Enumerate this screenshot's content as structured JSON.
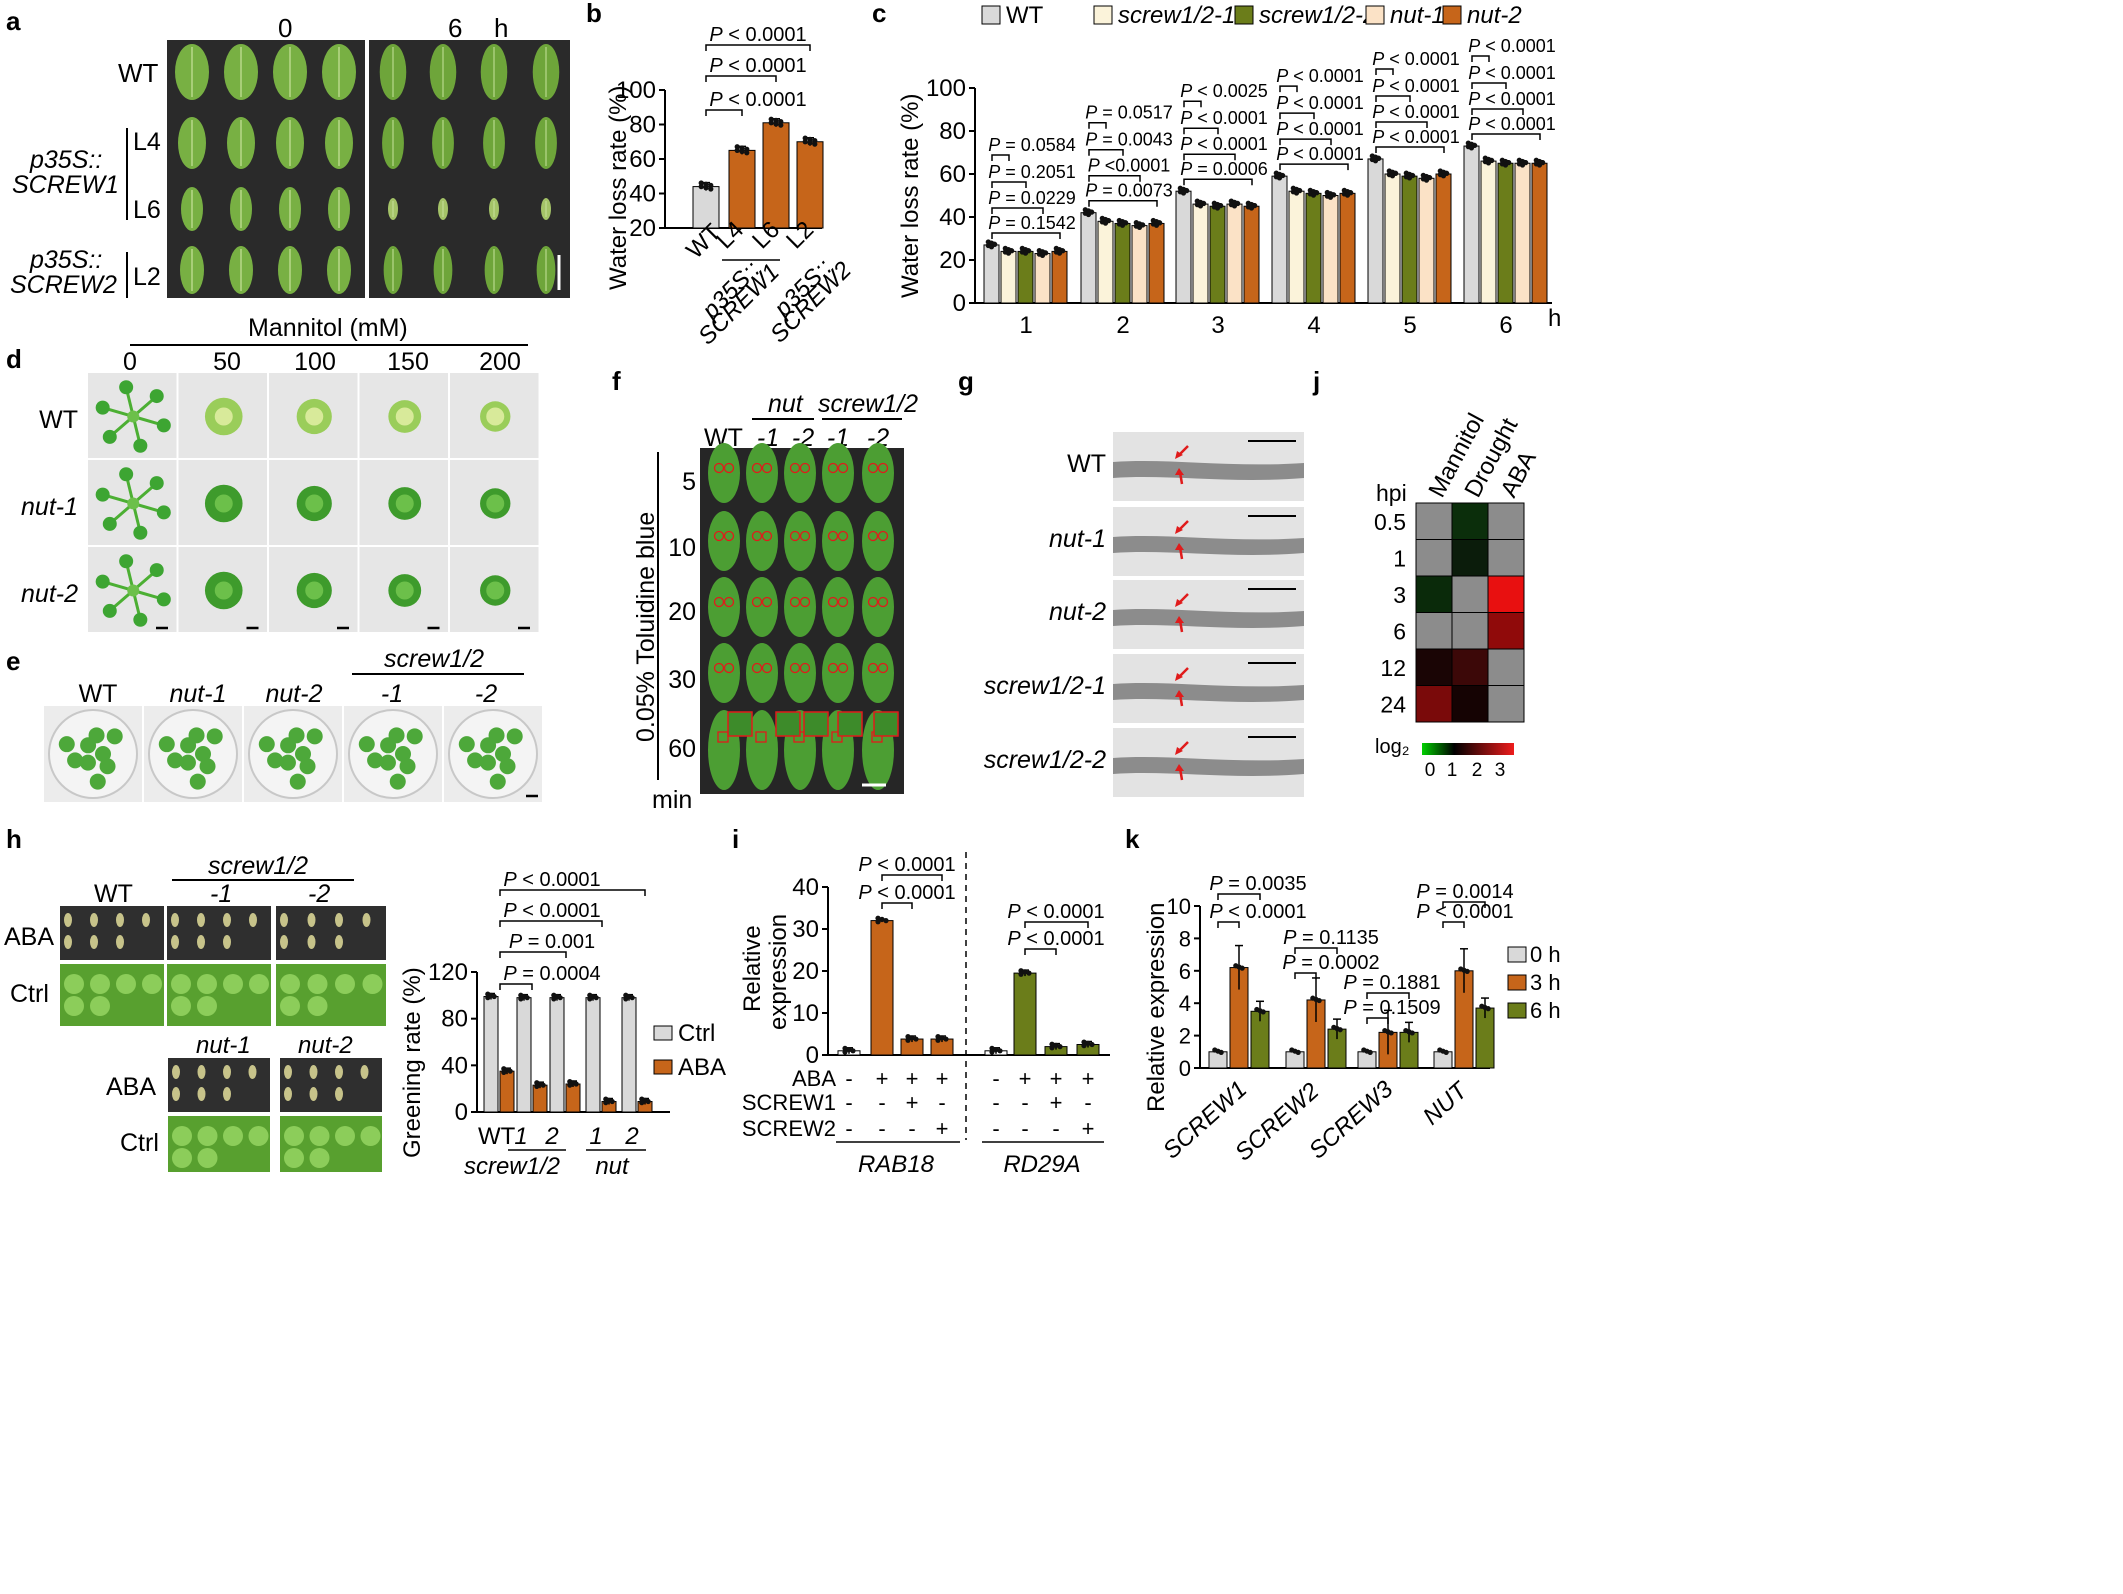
{
  "colors": {
    "wt_gray": "#d9d9d9",
    "orange": "#c6651a",
    "olive": "#6b7d1a",
    "cream": "#fbf3da",
    "peach": "#fbe2c6",
    "leaf": "#6aa63a",
    "heat_red": "#ee1c1c",
    "heat_green": "#00d000",
    "dark_bg": "#2a2a2a"
  },
  "panel_labels": {
    "a": "a",
    "b": "b",
    "c": "c",
    "d": "d",
    "e": "e",
    "f": "f",
    "g": "g",
    "h": "h",
    "i": "i",
    "j": "j",
    "k": "k"
  },
  "panel_a": {
    "time_0": "0",
    "time_6": "6",
    "time_unit": "h",
    "row_wt": "WT",
    "p35s": "p35S::",
    "screw1": "SCREW1",
    "screw2": "SCREW2",
    "l4": "L4",
    "l6": "L6",
    "l2": "L2"
  },
  "panel_b": {
    "ylabel": "Water loss rate (%)",
    "yticks": [
      "20",
      "40",
      "60",
      "80",
      "100"
    ],
    "pvals": [
      "P < 0.0001",
      "P < 0.0001",
      "P < 0.0001"
    ],
    "xlabels": [
      "WT",
      "L4",
      "L6",
      "L2"
    ],
    "group1": "p35S::",
    "group1b": "SCREW1",
    "group2": "p35S::",
    "group2b": "SCREW2"
  },
  "panel_c": {
    "legend": [
      "WT",
      "screw1/2-1",
      "screw1/2-2",
      "nut-1",
      "nut-2"
    ],
    "ylabel": "Water loss rate (%)",
    "yticks": [
      "0",
      "20",
      "40",
      "60",
      "80",
      "100"
    ],
    "xticks": [
      "1",
      "2",
      "3",
      "4",
      "5",
      "6"
    ],
    "xunit": "h",
    "pvals": [
      [
        "P = 0.1542",
        "P = 0.0229",
        "P = 0.2051",
        "P = 0.0584"
      ],
      [
        "P = 0.0073",
        "P <0.0001",
        "P = 0.0043",
        "P = 0.0517"
      ],
      [
        "P = 0.0006",
        "P < 0.0001",
        "P < 0.0001",
        "P < 0.0025"
      ],
      [
        "P < 0.0001",
        "P < 0.0001",
        "P < 0.0001",
        "P < 0.0001"
      ],
      [
        "P < 0.0001",
        "P < 0.0001",
        "P < 0.0001",
        "P < 0.0001"
      ],
      [
        "P < 0.0001",
        "P < 0.0001",
        "P < 0.0001",
        "P < 0.0001"
      ]
    ]
  },
  "panel_d": {
    "title": "Mannitol (mM)",
    "conc": [
      "0",
      "50",
      "100",
      "150",
      "200"
    ],
    "rows": [
      "WT",
      "nut-1",
      "nut-2"
    ]
  },
  "panel_e": {
    "labels": [
      "WT",
      "nut-1",
      "nut-2",
      "-1",
      "-2"
    ],
    "group": "screw1/2"
  },
  "panel_f": {
    "col_wt": "WT",
    "nut": "nut",
    "screw": "screw1/2",
    "cols": [
      "-1",
      "-2",
      "-1",
      "-2"
    ],
    "ylabel": "0.05% Toluidine blue",
    "times": [
      "5",
      "10",
      "20",
      "30",
      "60"
    ],
    "unit": "min"
  },
  "panel_g": {
    "rows": [
      "WT",
      "nut-1",
      "nut-2",
      "screw1/2-1",
      "screw1/2-2"
    ]
  },
  "panel_j": {
    "cols": [
      "Mannitol",
      "Drought",
      "ABA"
    ],
    "hpi": "hpi",
    "rows": [
      "0.5",
      "1",
      "3",
      "6",
      "12",
      "24"
    ],
    "cells": [
      [
        "#8c8c8c",
        "#0b2e0b",
        "#8c8c8c"
      ],
      [
        "#8c8c8c",
        "#0b1c0b",
        "#8c8c8c"
      ],
      [
        "#0a2a0a",
        "#8c8c8c",
        "#e81010"
      ],
      [
        "#8c8c8c",
        "#8c8c8c",
        "#900a0a"
      ],
      [
        "#1a0505",
        "#3c0808",
        "#8c8c8c"
      ],
      [
        "#7a0a0a",
        "#150303",
        "#8c8c8c"
      ]
    ],
    "legend_label": "log₂",
    "legend_ticks": [
      "0",
      "1",
      "2",
      "3"
    ]
  },
  "panel_h": {
    "wt": "WT",
    "screw": "screw1/2",
    "m1": "-1",
    "m2": "-2",
    "aba": "ABA",
    "ctrl": "Ctrl",
    "nut1": "nut-1",
    "nut2": "nut-2",
    "ylabel": "Greening rate (%)",
    "yticks": [
      "0",
      "40",
      "80",
      "120"
    ],
    "pvals": [
      "P < 0.0001",
      "P < 0.0001",
      "P = 0.001",
      "P = 0.0004"
    ],
    "legend": [
      "Ctrl",
      "ABA"
    ],
    "xlabels": [
      "WT",
      "1",
      "2",
      "1",
      "2"
    ],
    "group_screw": "screw1/2",
    "group_nut": "nut"
  },
  "panel_i": {
    "ylabel1": "Relative",
    "ylabel2": "expression",
    "yticks": [
      "0",
      "10",
      "20",
      "30",
      "40"
    ],
    "pvals": [
      "P < 0.0001",
      "P < 0.0001",
      "P < 0.0001",
      "P < 0.0001"
    ],
    "row_labels": [
      "ABA",
      "SCREW1",
      "SCREW2"
    ],
    "signs": [
      [
        "-",
        "+",
        "+",
        "+",
        "-",
        "+",
        "+",
        "+"
      ],
      [
        "-",
        "-",
        "+",
        "-",
        "-",
        "-",
        "+",
        "-"
      ],
      [
        "-",
        "-",
        "-",
        "+",
        "-",
        "-",
        "-",
        "+"
      ]
    ],
    "genes": [
      "RAB18",
      "RD29A"
    ]
  },
  "panel_k": {
    "ylabel": "Relative expression",
    "yticks": [
      "0",
      "2",
      "4",
      "6",
      "8",
      "10"
    ],
    "genes": [
      "SCREW1",
      "SCREW2",
      "SCREW3",
      "NUT"
    ],
    "legend": [
      "0 h",
      "3 h",
      "6 h"
    ],
    "pvals": [
      "P = 0.0035",
      "P < 0.0001",
      "P = 0.1135",
      "P = 0.0002",
      "P = 0.1881",
      "P = 0.1509",
      "P = 0.0014",
      "P < 0.0001"
    ]
  },
  "chart_data": [
    {
      "type": "bar",
      "id": "b",
      "categories": [
        "WT",
        "L4",
        "L6",
        "L2"
      ],
      "values": [
        44,
        65,
        81,
        70
      ],
      "ylabel": "Water loss rate (%)",
      "ylim": [
        20,
        100
      ]
    },
    {
      "type": "bar",
      "id": "c",
      "categories": [
        "1",
        "2",
        "3",
        "4",
        "5",
        "6"
      ],
      "series": [
        {
          "name": "WT",
          "values": [
            27,
            42,
            52,
            59,
            67,
            73
          ]
        },
        {
          "name": "screw1/2-1",
          "values": [
            24,
            38,
            46,
            52,
            60,
            66
          ]
        },
        {
          "name": "screw1/2-2",
          "values": [
            24,
            37,
            45,
            51,
            59,
            65
          ]
        },
        {
          "name": "nut-1",
          "values": [
            23,
            36,
            46,
            50,
            58,
            65
          ]
        },
        {
          "name": "nut-2",
          "values": [
            24,
            37,
            45,
            51,
            60,
            65
          ]
        }
      ],
      "ylabel": "Water loss rate (%)",
      "ylim": [
        0,
        100
      ]
    },
    {
      "type": "bar",
      "id": "h",
      "categories": [
        "WT",
        "1",
        "2",
        "1",
        "2"
      ],
      "series": [
        {
          "name": "Ctrl",
          "values": [
            99,
            98,
            98,
            98,
            98
          ]
        },
        {
          "name": "ABA",
          "values": [
            35,
            23,
            24,
            9,
            9
          ]
        }
      ],
      "ylabel": "Greening rate (%)",
      "ylim": [
        0,
        120
      ]
    },
    {
      "type": "bar",
      "id": "i",
      "categories": [
        "RAB18 -",
        "RAB18 ABA",
        "RAB18 ABA+SCREW1",
        "RAB18 ABA+SCREW2",
        "RD29A -",
        "RD29A ABA",
        "RD29A ABA+SCREW1",
        "RD29A ABA+SCREW2"
      ],
      "values": [
        1,
        32,
        3.8,
        3.8,
        1,
        19.5,
        2,
        2.5
      ],
      "ylabel": "Relative expression",
      "ylim": [
        0,
        40
      ]
    },
    {
      "type": "bar",
      "id": "k",
      "categories": [
        "SCREW1",
        "SCREW2",
        "SCREW3",
        "NUT"
      ],
      "series": [
        {
          "name": "0 h",
          "values": [
            1,
            1,
            1,
            1
          ]
        },
        {
          "name": "3 h",
          "values": [
            6.2,
            4.2,
            2.2,
            6.0
          ]
        },
        {
          "name": "6 h",
          "values": [
            3.5,
            2.4,
            2.2,
            3.7
          ]
        }
      ],
      "ylabel": "Relative expression",
      "ylim": [
        0,
        10
      ]
    }
  ]
}
